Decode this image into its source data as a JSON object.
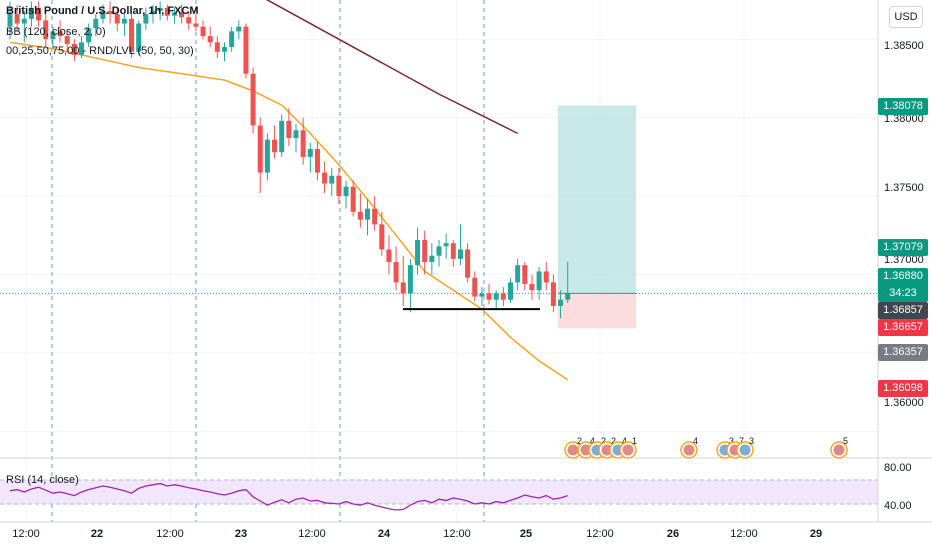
{
  "symbol_legend": {
    "title": "British Pound / U.S. Dollar, 1h, FXCM",
    "indicator_1": "BB (120, close, 2, 0)",
    "indicator_2": "00,25,50,75,00 - RND/LVL (50, 50, 30)"
  },
  "rsi_legend": "RSI (14, close)",
  "currency_button": "USD",
  "colors": {
    "up": "#26a69a",
    "down": "#ef5350",
    "bb_basis": "#7b2a2a",
    "ma": "#f5a623",
    "rsi": "#9c27b0",
    "rsi_band": "#f1e6fb",
    "target": "#b2dfdb",
    "stop": "#fcd7d7",
    "badge_green": "#089981",
    "badge_red": "#f23645",
    "badge_gray": "#787b86",
    "badge_dark": "#434651"
  },
  "price_axis": {
    "ticks": [
      "1.38500",
      "1.38000",
      "1.37500",
      "1.37000",
      "1.36000"
    ],
    "badges": {
      "b1": "1.38078",
      "b2": "1.37079",
      "b3": "1.36880",
      "b3_timer": "34:23",
      "b4": "1.36857",
      "b5": "1.36657",
      "b6": "1.36357",
      "b7": "1.36098"
    }
  },
  "rsi_axis": {
    "ticks": [
      "80.00",
      "40.00"
    ]
  },
  "time_axis": {
    "labels": [
      "12:00",
      "22",
      "12:00",
      "23",
      "12:00",
      "24",
      "12:00",
      "25",
      "12:00",
      "26",
      "12:00",
      "29"
    ]
  },
  "events": [
    "2",
    "4",
    "2",
    "2",
    "4",
    "1",
    "4",
    "3",
    "7",
    "3",
    "5"
  ],
  "chart_data": {
    "type": "candlestick",
    "title": "British Pound / U.S. Dollar, 1h, FXCM",
    "ylim": [
      1.3585,
      1.3875
    ],
    "candles": [
      [
        1.3858,
        1.3874,
        1.385,
        1.3866
      ],
      [
        1.3866,
        1.3872,
        1.3855,
        1.386
      ],
      [
        1.386,
        1.3868,
        1.3848,
        1.3863
      ],
      [
        1.3863,
        1.3874,
        1.3858,
        1.387
      ],
      [
        1.387,
        1.3874,
        1.3858,
        1.3862
      ],
      [
        1.3862,
        1.3866,
        1.3845,
        1.385
      ],
      [
        1.385,
        1.3858,
        1.3844,
        1.3855
      ],
      [
        1.3855,
        1.3862,
        1.3848,
        1.3852
      ],
      [
        1.3852,
        1.3856,
        1.3842,
        1.3847
      ],
      [
        1.3847,
        1.385,
        1.3836,
        1.384
      ],
      [
        1.384,
        1.3852,
        1.3838,
        1.3848
      ],
      [
        1.3848,
        1.386,
        1.3845,
        1.3857
      ],
      [
        1.3857,
        1.3866,
        1.3852,
        1.3863
      ],
      [
        1.3863,
        1.3872,
        1.386,
        1.3868
      ],
      [
        1.3868,
        1.3874,
        1.386,
        1.3866
      ],
      [
        1.3866,
        1.387,
        1.3855,
        1.386
      ],
      [
        1.386,
        1.3866,
        1.3852,
        1.3863
      ],
      [
        1.3863,
        1.3866,
        1.3838,
        1.3842
      ],
      [
        1.3842,
        1.3862,
        1.384,
        1.386
      ],
      [
        1.386,
        1.387,
        1.3856,
        1.3866
      ],
      [
        1.3866,
        1.3872,
        1.386,
        1.3868
      ],
      [
        1.3868,
        1.3874,
        1.3862,
        1.387
      ],
      [
        1.387,
        1.3872,
        1.3862,
        1.3865
      ],
      [
        1.3865,
        1.387,
        1.386,
        1.3867
      ],
      [
        1.3867,
        1.3872,
        1.386,
        1.3864
      ],
      [
        1.3864,
        1.3868,
        1.3856,
        1.386
      ],
      [
        1.386,
        1.3866,
        1.3855,
        1.3858
      ],
      [
        1.3858,
        1.3862,
        1.385,
        1.3852
      ],
      [
        1.3852,
        1.3858,
        1.3845,
        1.3848
      ],
      [
        1.3848,
        1.3852,
        1.3838,
        1.3842
      ],
      [
        1.3842,
        1.3848,
        1.3836,
        1.3845
      ],
      [
        1.3845,
        1.3858,
        1.3842,
        1.3855
      ],
      [
        1.3855,
        1.3862,
        1.385,
        1.3858
      ],
      [
        1.3858,
        1.386,
        1.3825,
        1.3828
      ],
      [
        1.3828,
        1.3832,
        1.379,
        1.3795
      ],
      [
        1.3795,
        1.38,
        1.3752,
        1.3765
      ],
      [
        1.3765,
        1.379,
        1.376,
        1.3786
      ],
      [
        1.3786,
        1.3795,
        1.3774,
        1.3778
      ],
      [
        1.3778,
        1.3802,
        1.3775,
        1.3798
      ],
      [
        1.3798,
        1.3806,
        1.3782,
        1.3787
      ],
      [
        1.3787,
        1.3796,
        1.3778,
        1.3792
      ],
      [
        1.3792,
        1.38,
        1.377,
        1.3775
      ],
      [
        1.3775,
        1.3784,
        1.3765,
        1.378
      ],
      [
        1.378,
        1.3785,
        1.376,
        1.3765
      ],
      [
        1.3765,
        1.3772,
        1.3752,
        1.3758
      ],
      [
        1.3758,
        1.3768,
        1.375,
        1.3763
      ],
      [
        1.3763,
        1.3768,
        1.3745,
        1.375
      ],
      [
        1.375,
        1.376,
        1.3742,
        1.3756
      ],
      [
        1.3756,
        1.376,
        1.3737,
        1.374
      ],
      [
        1.374,
        1.3752,
        1.373,
        1.3735
      ],
      [
        1.3735,
        1.3748,
        1.3725,
        1.3742
      ],
      [
        1.3742,
        1.375,
        1.3728,
        1.3732
      ],
      [
        1.3732,
        1.374,
        1.3712,
        1.3716
      ],
      [
        1.3716,
        1.3725,
        1.37,
        1.3708
      ],
      [
        1.3708,
        1.3718,
        1.369,
        1.3695
      ],
      [
        1.3695,
        1.3712,
        1.368,
        1.3688
      ],
      [
        1.3688,
        1.371,
        1.3676,
        1.3706
      ],
      [
        1.3706,
        1.373,
        1.37,
        1.3722
      ],
      [
        1.3722,
        1.3728,
        1.37,
        1.3708
      ],
      [
        1.3708,
        1.372,
        1.37,
        1.3712
      ],
      [
        1.3712,
        1.3722,
        1.3705,
        1.3718
      ],
      [
        1.3718,
        1.3726,
        1.371,
        1.372
      ],
      [
        1.372,
        1.3722,
        1.3705,
        1.371
      ],
      [
        1.371,
        1.3732,
        1.3706,
        1.3716
      ],
      [
        1.3716,
        1.372,
        1.3695,
        1.3698
      ],
      [
        1.3698,
        1.3702,
        1.3683,
        1.3686
      ],
      [
        1.3686,
        1.3692,
        1.368,
        1.3688
      ],
      [
        1.3688,
        1.3694,
        1.3681,
        1.3684
      ],
      [
        1.3684,
        1.369,
        1.3678,
        1.3688
      ],
      [
        1.3688,
        1.3692,
        1.368,
        1.3684
      ],
      [
        1.3684,
        1.3698,
        1.3682,
        1.3695
      ],
      [
        1.3695,
        1.371,
        1.369,
        1.3706
      ],
      [
        1.3706,
        1.3708,
        1.369,
        1.3694
      ],
      [
        1.3694,
        1.37,
        1.3684,
        1.369
      ],
      [
        1.369,
        1.3705,
        1.3684,
        1.3702
      ],
      [
        1.3702,
        1.3708,
        1.369,
        1.3695
      ],
      [
        1.3695,
        1.37,
        1.3676,
        1.368
      ],
      [
        1.368,
        1.369,
        1.3672,
        1.3684
      ],
      [
        1.3684,
        1.3708,
        1.3682,
        1.3688
      ]
    ],
    "bb_basis": [
      [
        0,
        1.3928
      ],
      [
        10,
        1.392
      ],
      [
        20,
        1.3905
      ],
      [
        30,
        1.389
      ],
      [
        40,
        1.3865
      ],
      [
        50,
        1.384
      ],
      [
        60,
        1.3815
      ],
      [
        71,
        1.379
      ]
    ],
    "ma": [
      [
        0,
        1.3848
      ],
      [
        6,
        1.3844
      ],
      [
        12,
        1.3838
      ],
      [
        18,
        1.3832
      ],
      [
        24,
        1.3828
      ],
      [
        30,
        1.3824
      ],
      [
        34,
        1.3817
      ],
      [
        38,
        1.3808
      ],
      [
        42,
        1.379
      ],
      [
        46,
        1.377
      ],
      [
        50,
        1.3748
      ],
      [
        54,
        1.3725
      ],
      [
        58,
        1.3702
      ],
      [
        62,
        1.369
      ],
      [
        66,
        1.3678
      ],
      [
        70,
        1.366
      ],
      [
        74,
        1.3645
      ],
      [
        78,
        1.3633
      ]
    ],
    "rsi": [
      52,
      54,
      50,
      55,
      58,
      53,
      48,
      50,
      47,
      44,
      50,
      54,
      57,
      60,
      58,
      55,
      52,
      48,
      56,
      60,
      62,
      64,
      60,
      62,
      60,
      57,
      55,
      52,
      50,
      47,
      45,
      48,
      52,
      54,
      42,
      35,
      28,
      33,
      37,
      32,
      38,
      40,
      35,
      36,
      32,
      31,
      30,
      34,
      30,
      28,
      32,
      28,
      25,
      22,
      20,
      21,
      28,
      34,
      36,
      32,
      38,
      36,
      40,
      38,
      35,
      30,
      32,
      30,
      34,
      32,
      36,
      40,
      45,
      42,
      40,
      44,
      38,
      40,
      44
    ],
    "rsi_range": [
      0,
      100
    ],
    "rsi_levels": [
      70,
      30
    ],
    "position": {
      "entry": 1.3688,
      "target": 1.38078,
      "stop": 1.36657
    },
    "support_level": 1.3678
  }
}
